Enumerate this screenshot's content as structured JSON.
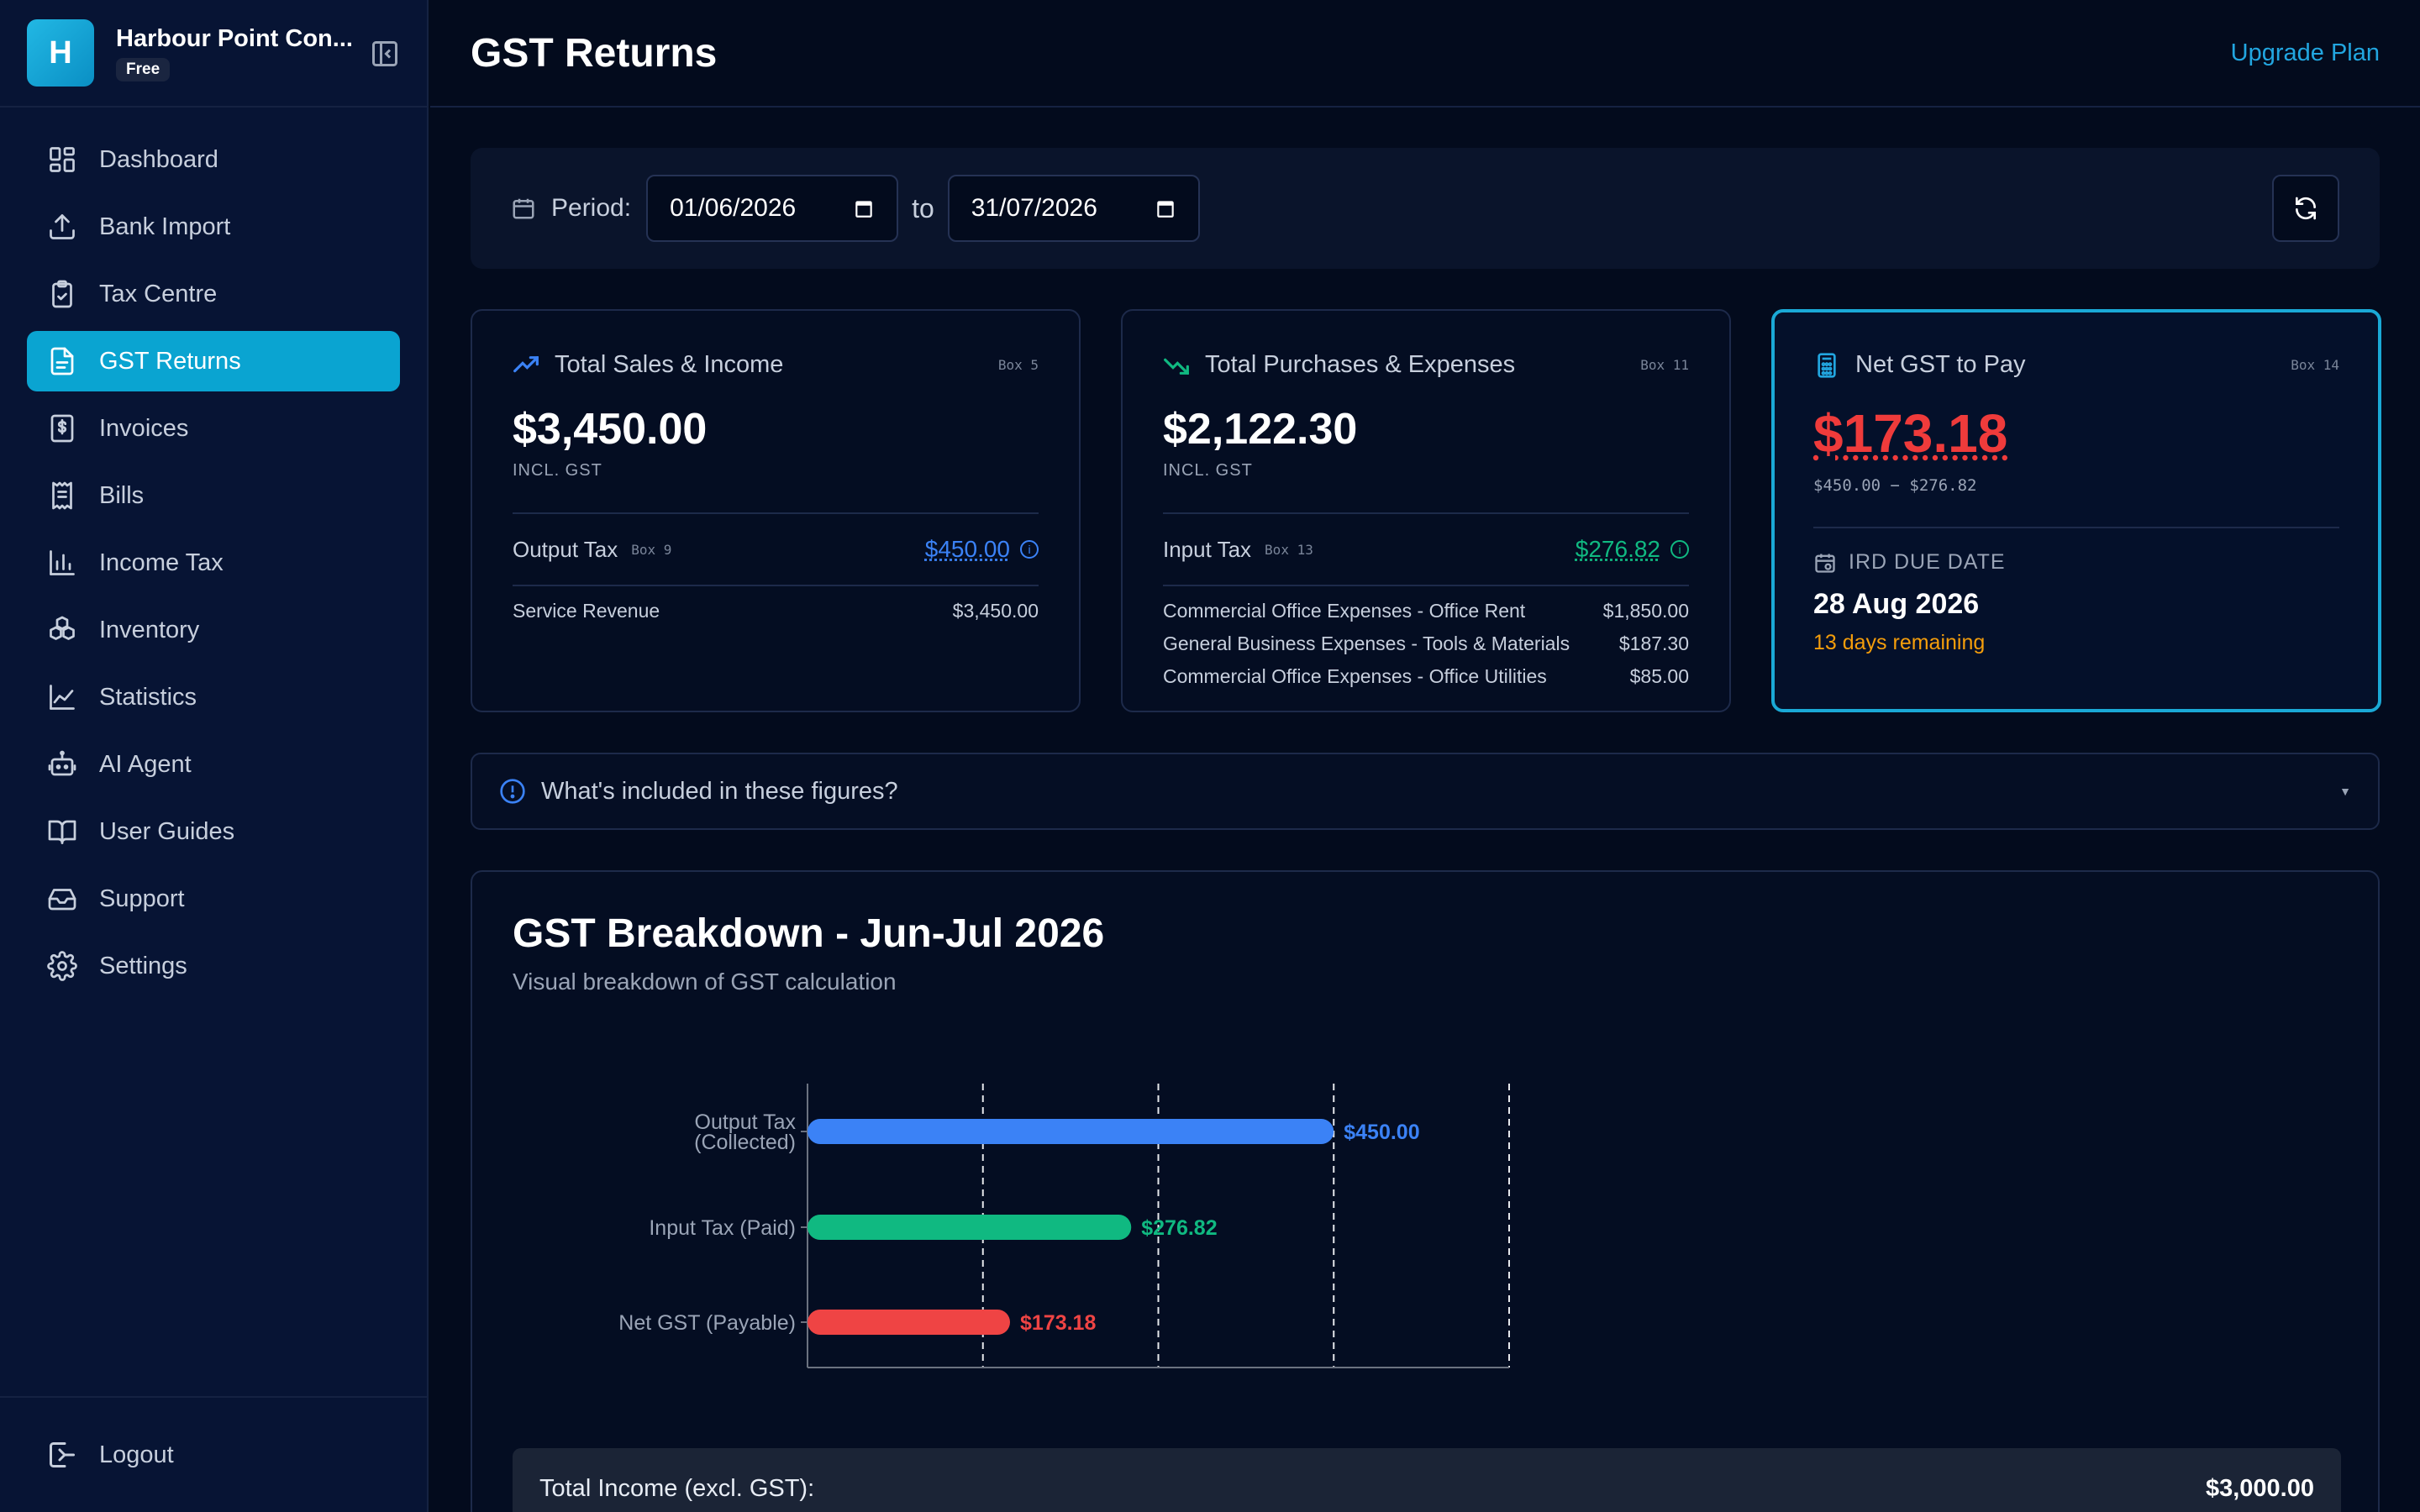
{
  "brand": {
    "initial": "H",
    "name": "Harbour Point Con...",
    "plan": "Free"
  },
  "nav": [
    {
      "label": "Dashboard",
      "icon": "dashboard-icon"
    },
    {
      "label": "Bank Import",
      "icon": "upload-icon"
    },
    {
      "label": "Tax Centre",
      "icon": "clipboard-check-icon"
    },
    {
      "label": "GST Returns",
      "icon": "document-icon"
    },
    {
      "label": "Invoices",
      "icon": "invoice-dollar-icon"
    },
    {
      "label": "Bills",
      "icon": "receipt-icon"
    },
    {
      "label": "Income Tax",
      "icon": "bar-chart-icon"
    },
    {
      "label": "Inventory",
      "icon": "boxes-icon"
    },
    {
      "label": "Statistics",
      "icon": "line-chart-icon"
    },
    {
      "label": "AI Agent",
      "icon": "robot-icon"
    },
    {
      "label": "User Guides",
      "icon": "book-icon"
    },
    {
      "label": "Support",
      "icon": "inbox-icon"
    },
    {
      "label": "Settings",
      "icon": "gear-icon"
    }
  ],
  "active_nav": "GST Returns",
  "logout": "Logout",
  "header": {
    "title": "GST Returns",
    "upgrade": "Upgrade Plan"
  },
  "period": {
    "label": "Period:",
    "from": "01/06/2026",
    "to_label": "to",
    "to": "31/07/2026"
  },
  "sales": {
    "title": "Total Sales & Income",
    "box": "Box 5",
    "value": "$3,450.00",
    "sub": "INCL. GST",
    "tax_label": "Output Tax",
    "tax_box": "Box 9",
    "tax_value": "$450.00",
    "items": [
      {
        "label": "Service Revenue",
        "value": "$3,450.00"
      }
    ]
  },
  "purchases": {
    "title": "Total Purchases & Expenses",
    "box": "Box 11",
    "value": "$2,122.30",
    "sub": "INCL. GST",
    "tax_label": "Input Tax",
    "tax_box": "Box 13",
    "tax_value": "$276.82",
    "items": [
      {
        "label": "Commercial Office Expenses - Office Rent",
        "value": "$1,850.00"
      },
      {
        "label": "General Business Expenses - Tools & Materials",
        "value": "$187.30"
      },
      {
        "label": "Commercial Office Expenses - Office Utilities",
        "value": "$85.00"
      }
    ]
  },
  "net": {
    "title": "Net GST to Pay",
    "box": "Box 14",
    "value": "$173.18",
    "calc": "$450.00 − $276.82",
    "due_label": "IRD DUE DATE",
    "due_date": "28 Aug 2026",
    "remaining": "13 days remaining"
  },
  "accordion": {
    "label": "What's included in these figures?"
  },
  "breakdown": {
    "title": "GST Breakdown - Jun-Jul 2026",
    "subtitle": "Visual breakdown of GST calculation",
    "total_income_label": "Total Income (excl. GST):",
    "total_income_value": "$3,000.00"
  },
  "colors": {
    "accent": "#0aa4d1",
    "output": "#3b82f6",
    "input": "#10b981",
    "net": "#ef4444"
  },
  "chart_data": {
    "type": "bar",
    "orientation": "horizontal",
    "categories": [
      "Output Tax (Collected)",
      "Input Tax (Paid)",
      "Net GST (Payable)"
    ],
    "category_lines": [
      [
        "Output Tax",
        "(Collected)"
      ],
      [
        "Input Tax (Paid)"
      ],
      [
        "Net GST (Payable)"
      ]
    ],
    "values": [
      450,
      276.82,
      173.18
    ],
    "data_labels": [
      "$450.00",
      "$276.82",
      "$173.18"
    ],
    "colors": [
      "#3b82f6",
      "#10b981",
      "#ef4444"
    ],
    "xlim": [
      0,
      600
    ],
    "xticks": [
      0,
      150,
      300,
      450,
      600
    ],
    "xtick_labels": [
      "$0.00",
      "$150.00",
      "$300.00",
      "$450.00",
      "$600.00"
    ],
    "grid": true
  }
}
